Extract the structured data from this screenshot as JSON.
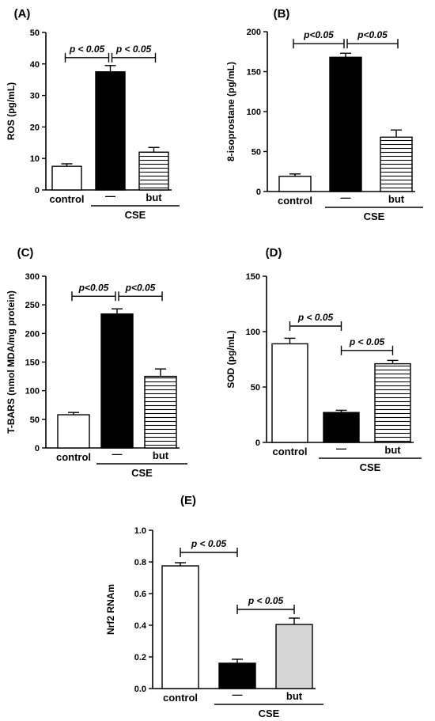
{
  "chart_data": [
    {
      "panel_label": "(A)",
      "type": "bar",
      "ylabel": "ROS (pg/mL)",
      "ylim": [
        0,
        50
      ],
      "yticks": [
        0,
        10,
        20,
        30,
        40,
        50
      ],
      "categories": [
        "control",
        "—",
        "but"
      ],
      "group_label": "CSE",
      "values": [
        7.5,
        37.5,
        12
      ],
      "errors": [
        0.8,
        2.0,
        1.5
      ],
      "fills": [
        "white",
        "black",
        "hstripes"
      ],
      "significance": [
        {
          "from": 0,
          "to": 1,
          "label": "p < 0.05",
          "level": 42
        },
        {
          "from": 1,
          "to": 2,
          "label": "p < 0.05",
          "level": 42
        }
      ]
    },
    {
      "panel_label": "(B)",
      "type": "bar",
      "ylabel": "8-isoprostane (pg/mL)",
      "ylim": [
        0,
        200
      ],
      "yticks": [
        0,
        50,
        100,
        150,
        200
      ],
      "categories": [
        "control",
        "—",
        "but"
      ],
      "group_label": "CSE",
      "values": [
        19,
        168,
        68
      ],
      "errors": [
        3,
        5,
        9
      ],
      "fills": [
        "white",
        "black",
        "hstripes"
      ],
      "significance": [
        {
          "from": 0,
          "to": 1,
          "label": "p<0.05",
          "level": 185
        },
        {
          "from": 1,
          "to": 2,
          "label": "p<0.05",
          "level": 185
        }
      ]
    },
    {
      "panel_label": "(C)",
      "type": "bar",
      "ylabel": "T-BARS (nmol MDA/mg protein)",
      "ylim": [
        0,
        300
      ],
      "yticks": [
        0,
        50,
        100,
        150,
        200,
        250,
        300
      ],
      "categories": [
        "control",
        "—",
        "but"
      ],
      "group_label": "CSE",
      "values": [
        58,
        234,
        125
      ],
      "errors": [
        4,
        9,
        13
      ],
      "fills": [
        "white",
        "black",
        "hstripes"
      ],
      "significance": [
        {
          "from": 0,
          "to": 1,
          "label": "p<0.05",
          "level": 265
        },
        {
          "from": 1,
          "to": 2,
          "label": "p<0.05",
          "level": 265
        }
      ]
    },
    {
      "panel_label": "(D)",
      "type": "bar",
      "ylabel": "SOD (pg/mL)",
      "ylim": [
        0,
        150
      ],
      "yticks": [
        0,
        50,
        100,
        150
      ],
      "categories": [
        "control",
        "—",
        "but"
      ],
      "group_label": "CSE",
      "values": [
        89,
        27,
        71
      ],
      "errors": [
        5,
        2,
        3
      ],
      "fills": [
        "white",
        "black",
        "hstripes"
      ],
      "significance": [
        {
          "from": 0,
          "to": 1,
          "label": "p < 0.05",
          "level": 105
        },
        {
          "from": 1,
          "to": 2,
          "label": "p < 0.05",
          "level": 83
        }
      ]
    },
    {
      "panel_label": "(E)",
      "type": "bar",
      "ylabel": "Nrf2 RNAm",
      "ylim": [
        0,
        1.0
      ],
      "yticks": [
        "0.0",
        "0.2",
        "0.4",
        "0.6",
        "0.8",
        "1.0"
      ],
      "categories": [
        "control",
        "—",
        "but"
      ],
      "group_label": "CSE",
      "values": [
        0.775,
        0.16,
        0.405
      ],
      "errors": [
        0.02,
        0.025,
        0.04
      ],
      "fills": [
        "white",
        "black",
        "lightgray"
      ],
      "significance": [
        {
          "from": 0,
          "to": 1,
          "label": "p < 0.05",
          "level": 0.86
        },
        {
          "from": 1,
          "to": 2,
          "label": "p < 0.05",
          "level": 0.5
        }
      ]
    }
  ]
}
